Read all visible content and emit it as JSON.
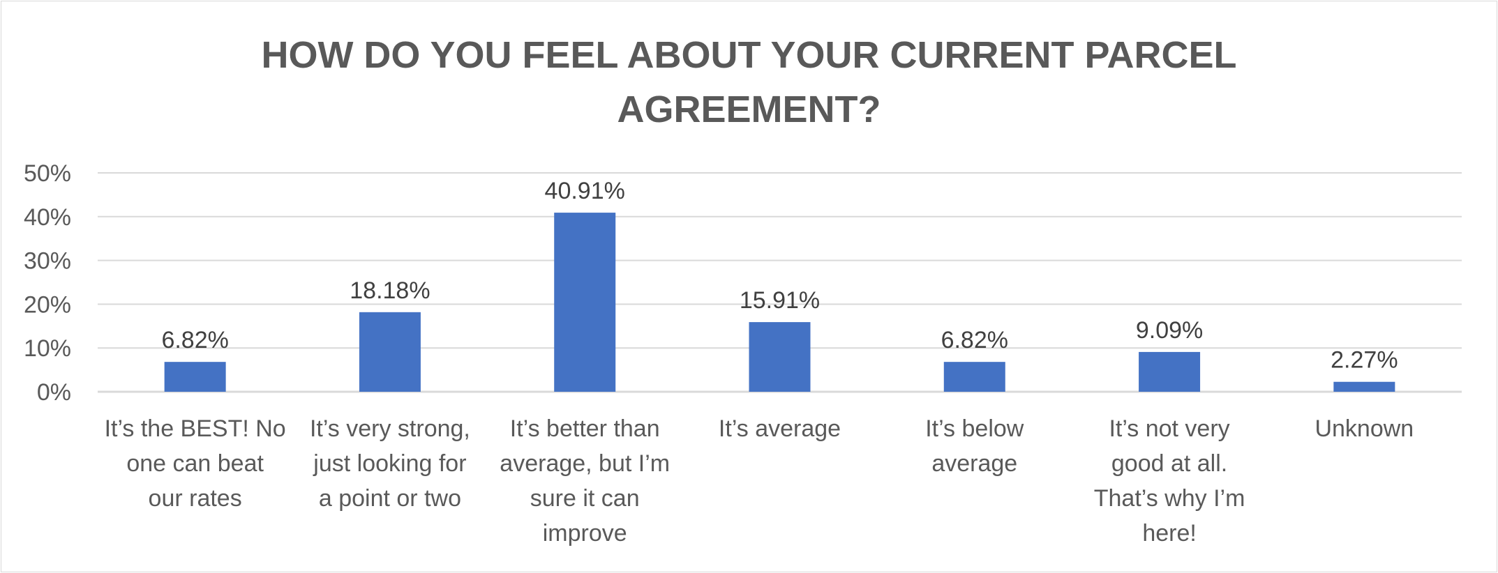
{
  "chart_data": {
    "type": "bar",
    "title_lines": [
      "HOW DO YOU FEEL ABOUT YOUR CURRENT PARCEL",
      "AGREEMENT?"
    ],
    "categories": [
      [
        "It’s the BEST! No",
        "one can beat",
        "our rates"
      ],
      [
        "It’s very strong,",
        "just looking for",
        "a point or two"
      ],
      [
        "It’s better than",
        "average, but I’m",
        "sure it can",
        "improve"
      ],
      [
        "It’s average"
      ],
      [
        "It’s below",
        "average"
      ],
      [
        "It’s not very",
        "good at all.",
        "That’s why I’m",
        "here!"
      ],
      [
        "Unknown"
      ]
    ],
    "values": [
      6.82,
      18.18,
      40.91,
      15.91,
      6.82,
      9.09,
      2.27
    ],
    "data_labels": [
      "6.82%",
      "18.18%",
      "40.91%",
      "15.91%",
      "6.82%",
      "9.09%",
      "2.27%"
    ],
    "y_ticks": [
      0,
      10,
      20,
      30,
      40,
      50
    ],
    "y_tick_labels": [
      "0%",
      "10%",
      "20%",
      "30%",
      "40%",
      "50%"
    ],
    "ylim": [
      0,
      50
    ],
    "xlabel": "",
    "ylabel": "",
    "grid": true,
    "legend": "none",
    "bar_color": "#4472c4",
    "grid_color": "#d9d9d9"
  }
}
